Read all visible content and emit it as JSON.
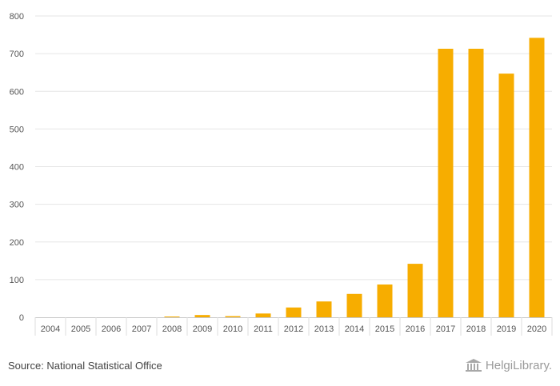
{
  "chart_data": {
    "type": "bar",
    "categories": [
      "2004",
      "2005",
      "2006",
      "2007",
      "2008",
      "2009",
      "2010",
      "2011",
      "2012",
      "2013",
      "2014",
      "2015",
      "2016",
      "2017",
      "2018",
      "2019",
      "2020"
    ],
    "values": [
      0,
      0,
      0,
      0,
      2,
      6,
      3,
      10,
      26,
      42,
      62,
      87,
      142,
      713,
      713,
      647,
      742
    ],
    "ylim": [
      0,
      800
    ],
    "yticks": [
      0,
      100,
      200,
      300,
      400,
      500,
      600,
      700,
      800
    ],
    "title": "",
    "xlabel": "",
    "ylabel": "",
    "bar_color": "#f7ad00",
    "grid": true
  },
  "footer": {
    "source": "Source: National Statistical Office",
    "logo_text": "HelgiLibrary."
  }
}
